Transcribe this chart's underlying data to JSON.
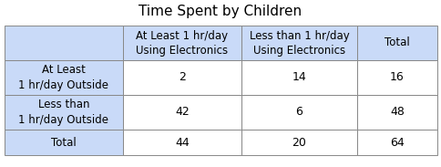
{
  "title": "Time Spent by Children",
  "col_headers": [
    "At Least 1 hr/day\nUsing Electronics",
    "Less than 1 hr/day\nUsing Electronics",
    "Total"
  ],
  "row_headers": [
    "At Least\n1 hr/day Outside",
    "Less than\n1 hr/day Outside",
    "Total"
  ],
  "cell_values": [
    [
      "2",
      "14",
      "16"
    ],
    [
      "42",
      "6",
      "48"
    ],
    [
      "44",
      "20",
      "64"
    ]
  ],
  "header_bg": "#c9daf8",
  "cell_bg": "#ffffff",
  "border_color": "#888888",
  "title_fontsize": 11,
  "cell_fontsize": 9,
  "header_fontsize": 8.5,
  "fig_bg": "#ffffff"
}
